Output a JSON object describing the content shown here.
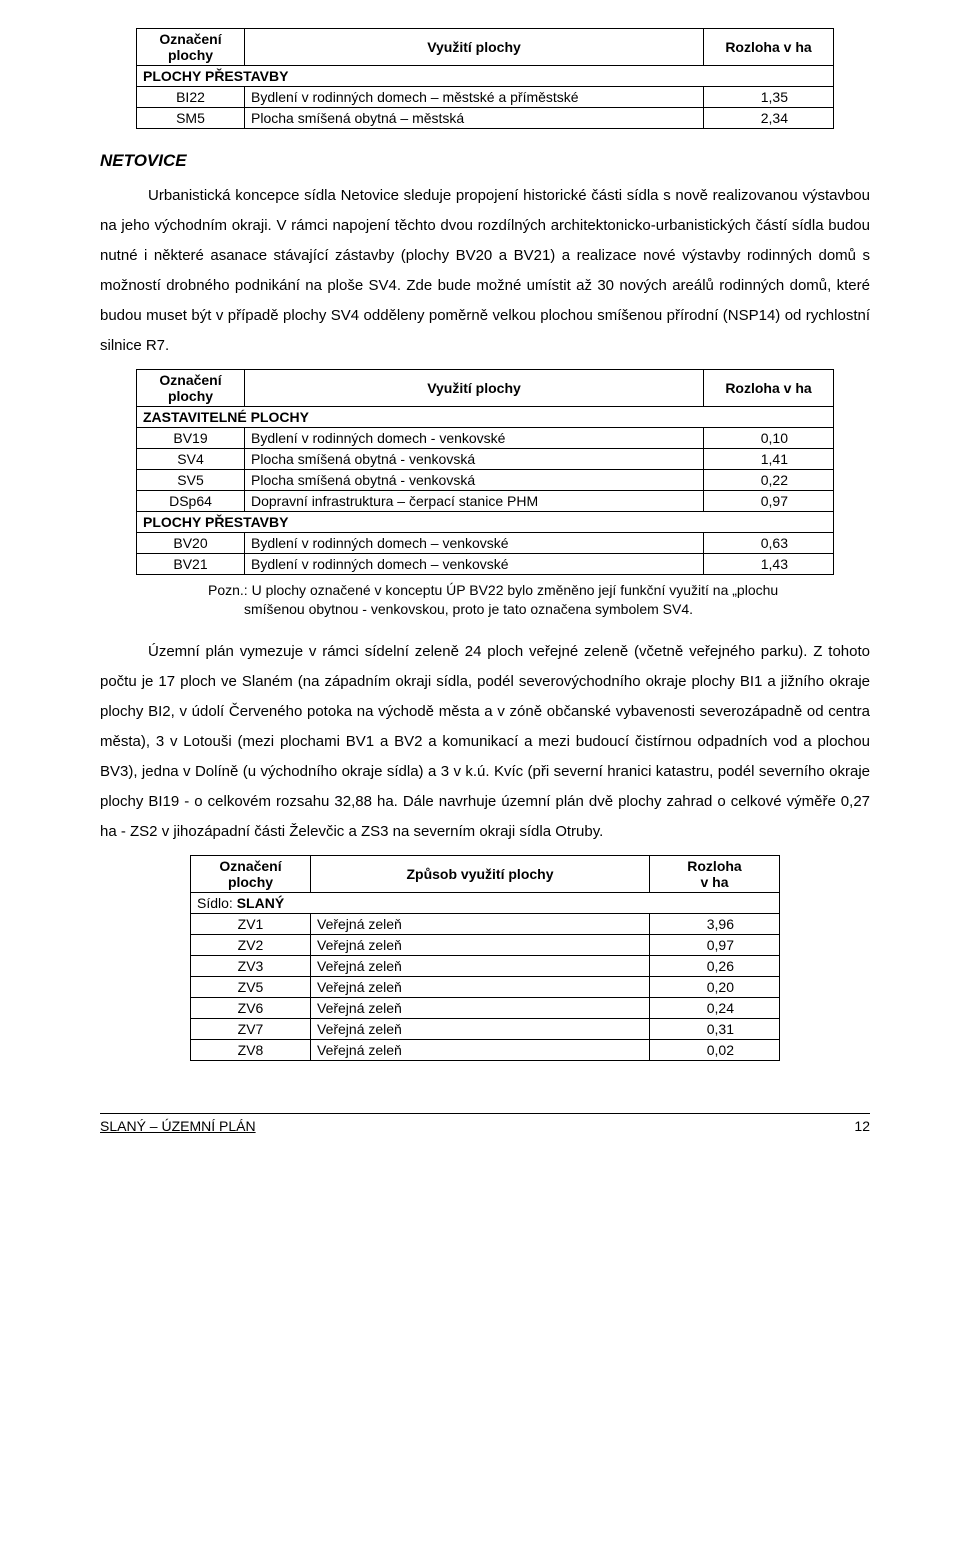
{
  "headers": {
    "oznaceni": "Označení plochy",
    "vyuziti": "Využití plochy",
    "zpusob": "Způsob využití plochy",
    "rozloha": "Rozloha v ha",
    "rozloha2l1": "Rozloha",
    "rozloha2l2": "v ha"
  },
  "sections": {
    "prestavby": "PLOCHY PŘESTAVBY",
    "zastavitelne": "ZASTAVITELNÉ PLOCHY",
    "sidlo_slany": "Sídlo: SLANÝ"
  },
  "table1": [
    {
      "code": "BI22",
      "use": "Bydlení v rodinných domech – městské a příměstské",
      "area": "1,35"
    },
    {
      "code": "SM5",
      "use": "Plocha smíšená obytná – městská",
      "area": "2,34"
    }
  ],
  "h_netovice": "NETOVICE",
  "p1": "Urbanistická koncepce sídla Netovice sleduje propojení historické části sídla s nově realizovanou výstavbou na jeho východním okraji. V rámci napojení těchto dvou rozdílných architektonicko-urbanistických částí sídla budou nutné i některé asanace stávající zástavby (plochy BV20 a BV21) a realizace nové výstavby rodinných domů s možností drobného podnikání na ploše SV4. Zde bude možné umístit až 30 nových areálů rodinných domů, které budou muset být v případě plochy SV4 odděleny poměrně velkou plochou smíšenou přírodní (NSP14) od rychlostní silnice R7.",
  "table2_a": [
    {
      "code": "BV19",
      "use": "Bydlení v rodinných domech - venkovské",
      "area": "0,10"
    },
    {
      "code": "SV4",
      "use": "Plocha smíšená obytná - venkovská",
      "area": "1,41"
    },
    {
      "code": "SV5",
      "use": "Plocha smíšená obytná - venkovská",
      "area": "0,22"
    },
    {
      "code": "DSp64",
      "use": "Dopravní infrastruktura – čerpací stanice PHM",
      "area": "0,97"
    }
  ],
  "table2_b": [
    {
      "code": "BV20",
      "use": "Bydlení v rodinných domech – venkovské",
      "area": "0,63"
    },
    {
      "code": "BV21",
      "use": "Bydlení v rodinných domech – venkovské",
      "area": "1,43"
    }
  ],
  "note": "Pozn.: U plochy označené v konceptu ÚP BV22 bylo změněno její funkční využití na „plochu smíšenou obytnou - venkovskou, proto je tato označena symbolem SV4.",
  "p2": "Územní plán vymezuje v rámci sídelní zeleně 24 ploch veřejné zeleně (včetně veřejného parku). Z tohoto počtu je 17 ploch ve Slaném (na západním okraji sídla, podél severovýchodního okraje plochy BI1 a jižního okraje plochy BI2, v údolí Červeného potoka na východě města a v zóně občanské vybavenosti severozápadně od centra města), 3 v Lotouši (mezi plochami BV1 a BV2 a komunikací a mezi budoucí čistírnou odpadních vod a plochou BV3), jedna v Dolíně (u východního okraje sídla) a 3 v k.ú. Kvíc (při severní hranici katastru, podél severního okraje plochy BI19 - o celkovém rozsahu 32,88 ha. Dále navrhuje územní plán dvě plochy zahrad o celkové výměře 0,27 ha - ZS2 v jihozápadní části Želevčic a ZS3 na severním okraji sídla Otruby.",
  "table3": [
    {
      "code": "ZV1",
      "use": "Veřejná zeleň",
      "area": "3,96"
    },
    {
      "code": "ZV2",
      "use": "Veřejná zeleň",
      "area": "0,97"
    },
    {
      "code": "ZV3",
      "use": "Veřejná zeleň",
      "area": "0,26"
    },
    {
      "code": "ZV5",
      "use": "Veřejná zeleň",
      "area": "0,20"
    },
    {
      "code": "ZV6",
      "use": "Veřejná zeleň",
      "area": "0,24"
    },
    {
      "code": "ZV7",
      "use": "Veřejná zeleň",
      "area": "0,31"
    },
    {
      "code": "ZV8",
      "use": "Veřejná zeleň",
      "area": "0,02"
    }
  ],
  "footer": {
    "title": "SLANÝ – ÚZEMNÍ PLÁN",
    "page": "12"
  }
}
